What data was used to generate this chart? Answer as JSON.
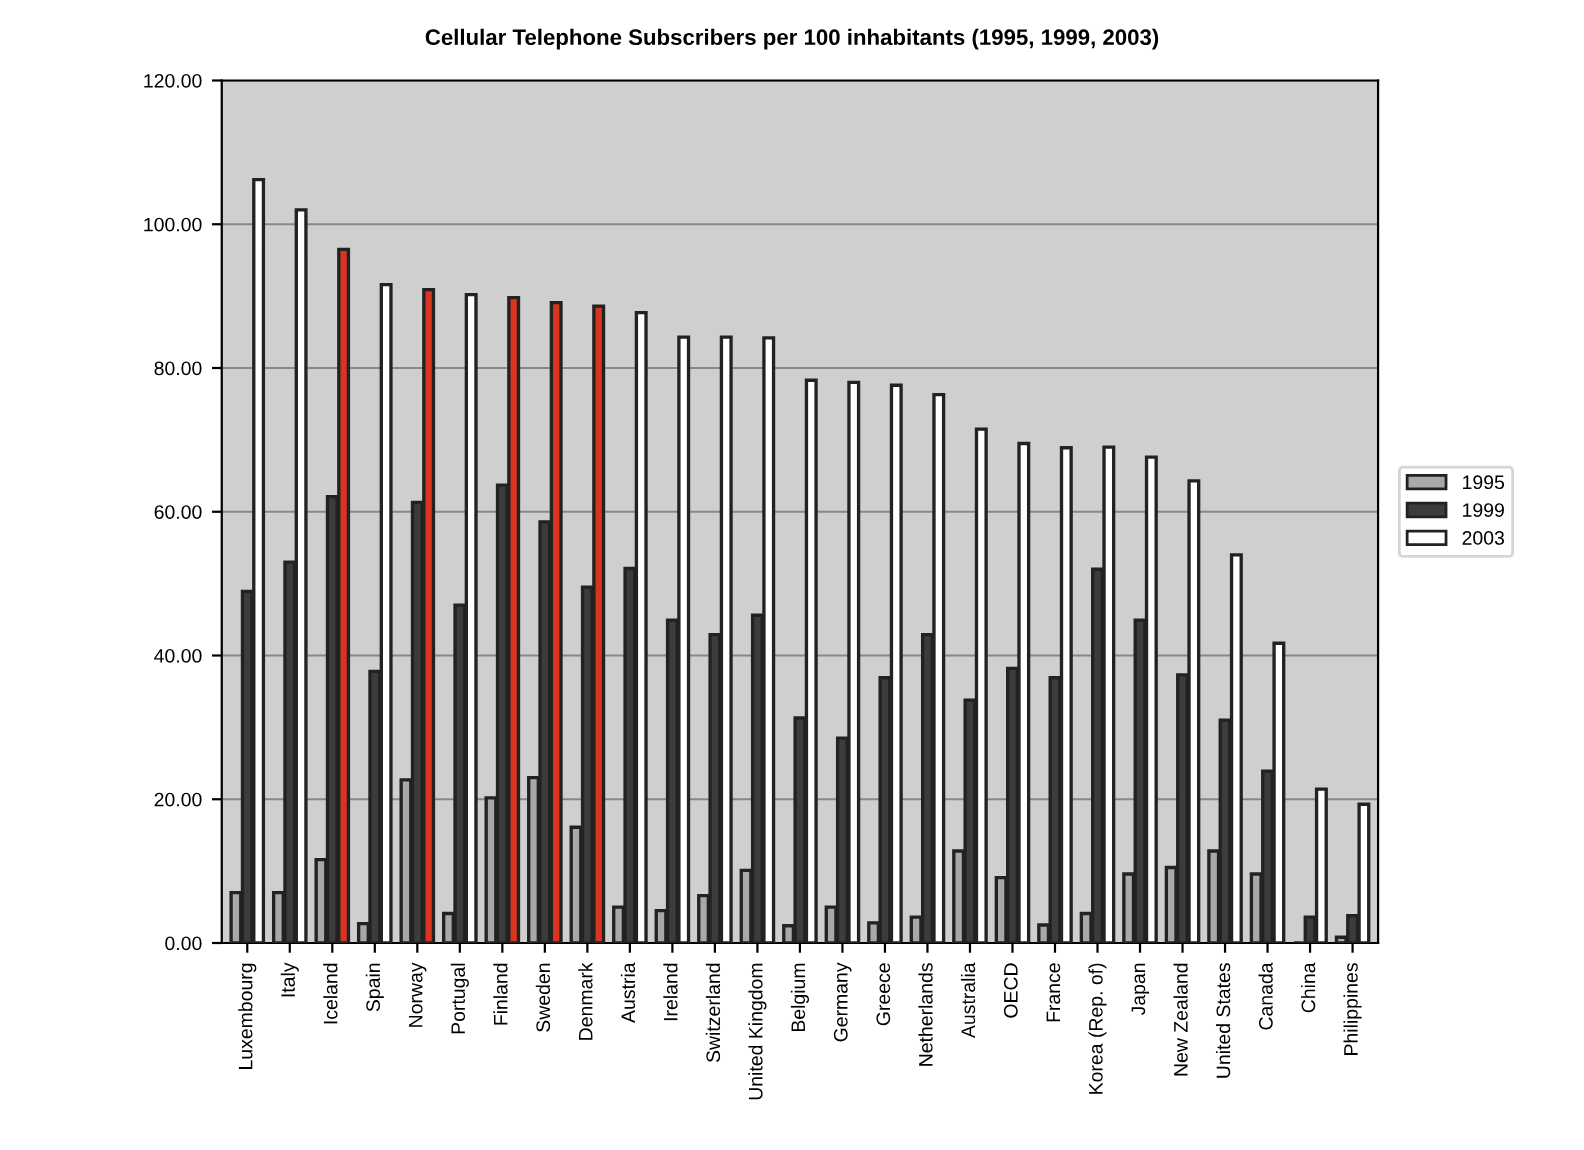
{
  "chart_data": {
    "type": "bar",
    "title": "Cellular Telephone Subscribers per 100 inhabitants (1995, 1999, 2003)",
    "categories": [
      "Luxembourg",
      "Italy",
      "Iceland",
      "Spain",
      "Norway",
      "Portugal",
      "Finland",
      "Sweden",
      "Denmark",
      "Austria",
      "Ireland",
      "Switzerland",
      "United Kingdom",
      "Belgium",
      "Germany",
      "Greece",
      "Netherlands",
      "Australia",
      "OECD",
      "France",
      "Korea (Rep. of)",
      "Japan",
      "New Zealand",
      "United States",
      "Canada",
      "China",
      "Philippines"
    ],
    "series": [
      {
        "name": "1995",
        "color": "#a8a8a8",
        "values": [
          7.0,
          7.0,
          11.6,
          2.7,
          22.7,
          4.1,
          20.2,
          23.0,
          16.1,
          5.0,
          4.5,
          6.6,
          10.1,
          2.4,
          5.0,
          2.8,
          3.6,
          12.8,
          9.1,
          2.5,
          4.1,
          9.6,
          10.5,
          12.8,
          9.6,
          null,
          0.8
        ]
      },
      {
        "name": "1999",
        "color": "#3c3c3c",
        "values": [
          48.9,
          53.0,
          62.1,
          37.8,
          61.3,
          47.0,
          63.7,
          58.6,
          49.5,
          52.1,
          44.9,
          42.9,
          45.6,
          31.3,
          28.5,
          36.9,
          42.9,
          33.8,
          38.2,
          36.9,
          52.0,
          44.9,
          37.3,
          31.0,
          23.9,
          3.6,
          3.8
        ]
      },
      {
        "name": "2003",
        "color": "#ffffff",
        "colors": [
          "#ffffff",
          "#ffffff",
          "#d9341f",
          "#ffffff",
          "#d9341f",
          "#ffffff",
          "#d9341f",
          "#d9341f",
          "#d9341f",
          "#ffffff",
          "#ffffff",
          "#ffffff",
          "#ffffff",
          "#ffffff",
          "#ffffff",
          "#ffffff",
          "#ffffff",
          "#ffffff",
          "#ffffff",
          "#ffffff",
          "#ffffff",
          "#ffffff",
          "#ffffff",
          "#ffffff",
          "#ffffff",
          "#ffffff",
          "#ffffff"
        ],
        "values": [
          106.2,
          102.0,
          96.5,
          91.6,
          90.9,
          90.2,
          89.8,
          89.1,
          88.6,
          87.7,
          84.3,
          84.3,
          84.2,
          78.3,
          78.0,
          77.6,
          76.3,
          71.5,
          69.5,
          68.9,
          69.0,
          67.6,
          64.3,
          54.0,
          41.7,
          21.4,
          19.3
        ]
      }
    ],
    "ylim": [
      0,
      120
    ],
    "yticks": [
      {
        "value": 0,
        "label": "0.00"
      },
      {
        "value": 20,
        "label": "20.00"
      },
      {
        "value": 40,
        "label": "40.00"
      },
      {
        "value": 60,
        "label": "60.00"
      },
      {
        "value": 80,
        "label": "80.00"
      },
      {
        "value": 100,
        "label": "100.00"
      },
      {
        "value": 120,
        "label": "120.00"
      }
    ],
    "grid": "y",
    "legend": "right"
  }
}
